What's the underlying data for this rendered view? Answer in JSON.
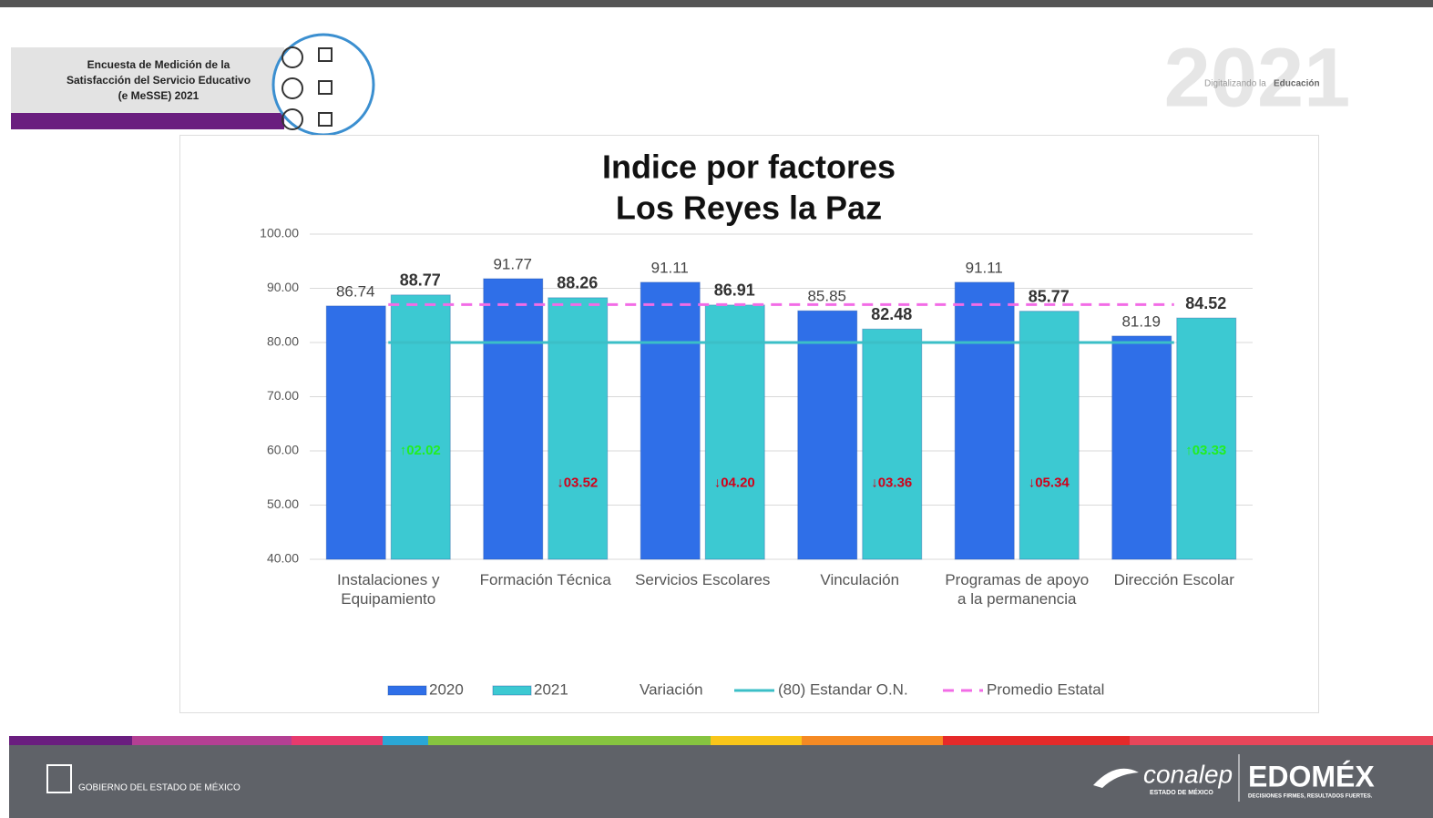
{
  "header": {
    "survey": "Encuesta de Medición de la Satisfacción del Servicio Educativo (e MeSSE) 2021",
    "year": "2021",
    "slogan": "Digitalizando la",
    "slogan_bold": "Educación"
  },
  "chart_data": {
    "type": "bar",
    "title": "Indice por factores",
    "subtitle": "Los Reyes la Paz",
    "categories": [
      "Instalaciones y Equipamiento",
      "Formación Técnica",
      "Servicios Escolares",
      "Vinculación",
      "Programas de apoyo a la permanencia",
      "Dirección Escolar"
    ],
    "series": [
      {
        "name": "2020",
        "color": "#2f6fe8",
        "values": [
          86.74,
          91.77,
          91.11,
          85.85,
          91.11,
          81.19
        ]
      },
      {
        "name": "2021",
        "color": "#3cc9d2",
        "values": [
          88.77,
          88.26,
          86.91,
          82.48,
          85.77,
          84.52
        ]
      },
      {
        "name": "Variación",
        "type": "label",
        "values": [
          2.02,
          -3.52,
          -4.2,
          -3.36,
          -5.34,
          3.33
        ],
        "value_labels": [
          "↑02.02",
          "↓03.52",
          "↓04.20",
          "↓03.36",
          "↓05.34",
          "↑03.33"
        ],
        "up_color": "#22ee22",
        "down_color": "#d0021b"
      },
      {
        "name": "(80) Estandar O.N.",
        "type": "line",
        "color": "#3bbfc7",
        "values": [
          80,
          80,
          80,
          80,
          80,
          80
        ]
      },
      {
        "name": "Promedio  Estatal",
        "type": "line",
        "dashed": true,
        "color": "#f26ce6",
        "values": [
          87,
          87,
          87,
          87,
          87,
          87
        ]
      }
    ],
    "ylim": [
      40,
      100
    ],
    "yticks": [
      {
        "value": 40,
        "label": "40.00"
      },
      {
        "value": 50,
        "label": "50.00"
      },
      {
        "value": 60,
        "label": "60.00"
      },
      {
        "value": 70,
        "label": "70.00"
      },
      {
        "value": 80,
        "label": "80.00"
      },
      {
        "value": 90,
        "label": "90.00"
      },
      {
        "value": 100,
        "label": "100.00"
      }
    ],
    "grid": true
  },
  "footer": {
    "gov": "GOBIERNO DEL ESTADO DE MÉXICO",
    "brand": "conalep",
    "brand_sub": "ESTADO DE MÉXICO",
    "edomex": "EDOMÉX",
    "edomex_sub": "DECISIONES FIRMES, RESULTADOS FUERTES."
  }
}
